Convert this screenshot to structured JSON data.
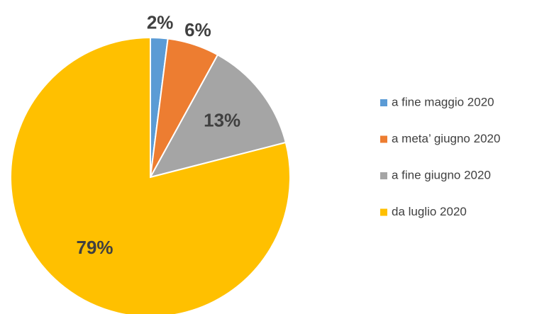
{
  "chart_data": {
    "type": "pie",
    "categories": [
      "a fine maggio 2020",
      "a meta’ giugno 2020",
      "a fine giugno 2020",
      "da luglio 2020"
    ],
    "values": [
      2,
      6,
      13,
      79
    ],
    "value_labels": [
      "2%",
      "6%",
      "13%",
      "79%"
    ],
    "colors": [
      "#5b9bd5",
      "#ed7d31",
      "#a5a5a5",
      "#ffc000"
    ],
    "legend": "right"
  }
}
